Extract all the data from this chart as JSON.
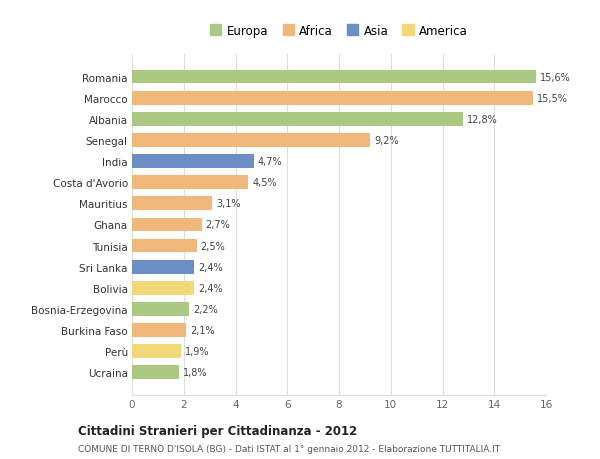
{
  "countries": [
    "Ucraina",
    "Perù",
    "Burkina Faso",
    "Bosnia-Erzegovina",
    "Bolivia",
    "Sri Lanka",
    "Tunisia",
    "Ghana",
    "Mauritius",
    "Costa d'Avorio",
    "India",
    "Senegal",
    "Albania",
    "Marocco",
    "Romania"
  ],
  "values": [
    1.8,
    1.9,
    2.1,
    2.2,
    2.4,
    2.4,
    2.5,
    2.7,
    3.1,
    4.5,
    4.7,
    9.2,
    12.8,
    15.5,
    15.6
  ],
  "labels": [
    "1,8%",
    "1,9%",
    "2,1%",
    "2,2%",
    "2,4%",
    "2,4%",
    "2,5%",
    "2,7%",
    "3,1%",
    "4,5%",
    "4,7%",
    "9,2%",
    "12,8%",
    "15,5%",
    "15,6%"
  ],
  "continents": [
    "Europa",
    "America",
    "Africa",
    "Europa",
    "America",
    "Asia",
    "Africa",
    "Africa",
    "Africa",
    "Africa",
    "Asia",
    "Africa",
    "Europa",
    "Africa",
    "Europa"
  ],
  "colors": {
    "Europa": "#aac882",
    "Africa": "#f0b87a",
    "Asia": "#6b8ec4",
    "America": "#f2d878"
  },
  "legend_order": [
    "Europa",
    "Africa",
    "Asia",
    "America"
  ],
  "xlim": [
    0,
    16
  ],
  "xticks": [
    0,
    2,
    4,
    6,
    8,
    10,
    12,
    14,
    16
  ],
  "title": "Cittadini Stranieri per Cittadinanza - 2012",
  "subtitle": "COMUNE DI TERNO D'ISOLA (BG) - Dati ISTAT al 1° gennaio 2012 - Elaborazione TUTTITALIA.IT",
  "bg_color": "#ffffff",
  "grid_color": "#dddddd",
  "bar_height": 0.65
}
